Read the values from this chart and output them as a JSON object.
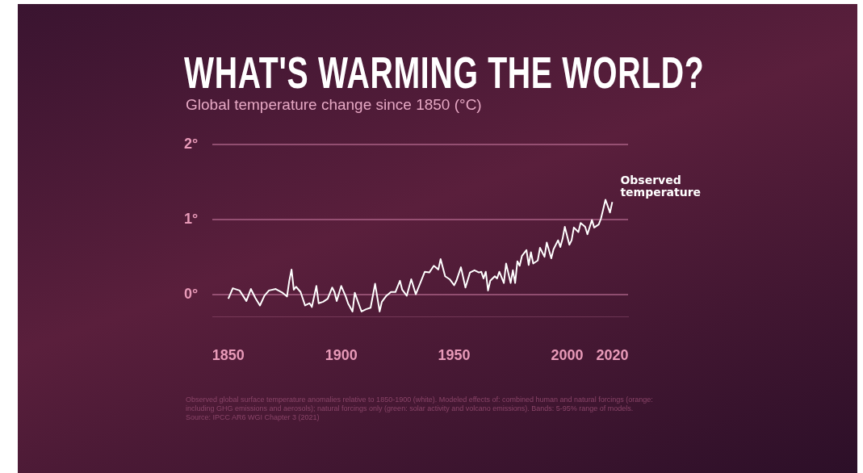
{
  "chart_data": {
    "type": "line",
    "title": "WHAT'S WARMING THE WORLD?",
    "subtitle": "Global temperature change since 1850 (°C)",
    "annotations": [
      "Observed global surface temperature anomalies relative to 1850-1900 (white). Modeled effects of: combined human and natural forcings (orange: including GHG emissions and aerosols); natural forcings only (green: solar activity and volcano emissions). Bands: 5-95% range of models.",
      "Source: IPCC AR6 WGI Chapter 3 (2021)"
    ],
    "series": [
      {
        "name": "Observed temperature",
        "color": "#ffffff",
        "x": [
          1850,
          1852,
          1855,
          1858,
          1860,
          1862,
          1864,
          1866,
          1868,
          1871,
          1874,
          1876,
          1877,
          1878,
          1879,
          1880,
          1882,
          1884,
          1886,
          1887,
          1889,
          1890,
          1892,
          1894,
          1896,
          1897,
          1898,
          1900,
          1902,
          1903,
          1905,
          1906,
          1908,
          1909,
          1911,
          1913,
          1915,
          1917,
          1918,
          1920,
          1922,
          1924,
          1926,
          1927,
          1929,
          1931,
          1933,
          1935,
          1937,
          1939,
          1941,
          1943,
          1944,
          1946,
          1948,
          1950,
          1951,
          1953,
          1955,
          1957,
          1959,
          1961,
          1962,
          1963,
          1964,
          1965,
          1966,
          1968,
          1969,
          1970,
          1972,
          1973,
          1975,
          1976,
          1977,
          1978,
          1979,
          1980,
          1982,
          1983,
          1984,
          1985,
          1987,
          1988,
          1990,
          1991,
          1993,
          1994,
          1996,
          1997,
          1998,
          1999,
          2001,
          2002,
          2003,
          2005,
          2006,
          2008,
          2009,
          2011,
          2012,
          2014,
          2015,
          2017,
          2019,
          2020
        ],
        "values": [
          -0.06,
          0.08,
          0.05,
          -0.09,
          0.07,
          -0.05,
          -0.15,
          -0.02,
          0.05,
          0.07,
          0.02,
          -0.03,
          0.18,
          0.33,
          0.06,
          0.1,
          0.03,
          -0.15,
          -0.12,
          -0.17,
          0.11,
          -0.12,
          -0.1,
          -0.06,
          0.09,
          0.03,
          -0.09,
          0.11,
          -0.03,
          -0.12,
          -0.23,
          0.02,
          -0.15,
          -0.23,
          -0.2,
          -0.18,
          0.14,
          -0.23,
          -0.1,
          -0.02,
          0.03,
          0.03,
          0.18,
          0.06,
          -0.02,
          0.2,
          0.0,
          0.15,
          0.3,
          0.29,
          0.38,
          0.33,
          0.47,
          0.24,
          0.2,
          0.12,
          0.18,
          0.36,
          0.09,
          0.29,
          0.32,
          0.29,
          0.3,
          0.21,
          0.3,
          0.05,
          0.18,
          0.24,
          0.21,
          0.3,
          0.15,
          0.41,
          0.15,
          0.32,
          0.15,
          0.44,
          0.38,
          0.51,
          0.59,
          0.39,
          0.56,
          0.41,
          0.45,
          0.62,
          0.5,
          0.69,
          0.48,
          0.6,
          0.72,
          0.63,
          0.74,
          0.9,
          0.66,
          0.72,
          0.89,
          0.83,
          0.95,
          0.9,
          0.8,
          0.99,
          0.89,
          0.93,
          1.01,
          1.26,
          1.09,
          1.23
        ]
      }
    ],
    "xlim": [
      1843,
      2027
    ],
    "ylim": [
      -0.3,
      2
    ],
    "xticks": [
      1850,
      1900,
      1950,
      2000,
      2020
    ],
    "yticks": [
      {
        "value": 0,
        "label": "0°"
      },
      {
        "value": 1,
        "label": "1°"
      },
      {
        "value": 2,
        "label": "2°"
      }
    ],
    "grid": "y",
    "marker": "none",
    "line_style": "solid"
  }
}
